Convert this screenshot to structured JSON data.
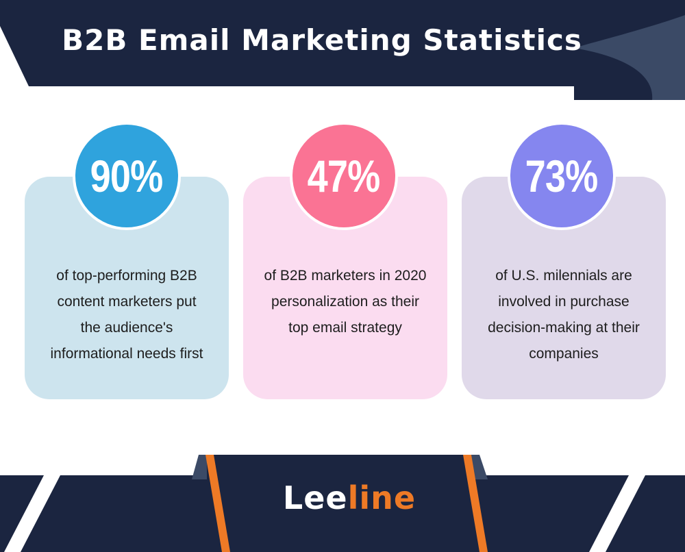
{
  "header": {
    "title": "B2B Email Marketing Statistics"
  },
  "stats": [
    {
      "value": "90%",
      "lines": [
        "of top-performing B2B",
        "content marketers put",
        "the audience's",
        "informational needs first"
      ],
      "circle_color": "#2fa3dd",
      "card_color": "#cde4ee"
    },
    {
      "value": "47%",
      "lines": [
        "of B2B marketers in 2020",
        "personalization as their",
        "top email strategy"
      ],
      "circle_color": "#fa7394",
      "card_color": "#fbdcf0"
    },
    {
      "value": "73%",
      "lines": [
        "of U.S. milennials are",
        "involved in purchase",
        "decision-making at their",
        "companies"
      ],
      "circle_color": "#8586ef",
      "card_color": "#e0d9ea"
    }
  ],
  "footer": {
    "brand_part1": "Lee",
    "brand_part2": "line"
  },
  "colors": {
    "navy": "#1b2540",
    "accent_orange": "#ee7a26",
    "slate": "#3b4a66"
  }
}
